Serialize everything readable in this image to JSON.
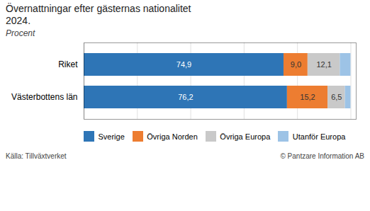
{
  "chart_data": {
    "type": "bar",
    "orientation": "horizontal",
    "stacked": true,
    "title": "Övernattningar efter gästernas nationalitet\n2024.",
    "subtitle": "Procent",
    "categories": [
      "Riket",
      "Västerbottens län"
    ],
    "series": [
      {
        "name": "Sverige",
        "color": "#2e75b6",
        "values": [
          74.9,
          76.2
        ],
        "value_labels": [
          "74,9",
          "76,2"
        ]
      },
      {
        "name": "Övriga Norden",
        "color": "#ed7d31",
        "values": [
          9.0,
          15.2
        ],
        "value_labels": [
          "9,0",
          "15,2"
        ]
      },
      {
        "name": "Övriga Europa",
        "color": "#c9c9c9",
        "values": [
          12.1,
          6.5
        ],
        "value_labels": [
          "12,1",
          "6,5"
        ]
      },
      {
        "name": "Utanför Europa",
        "color": "#9dc3e6",
        "values": [
          4.0,
          2.1
        ],
        "value_labels": [
          null,
          null
        ]
      }
    ],
    "xlim": [
      0,
      102
    ],
    "xticks": [
      0,
      20,
      40,
      60,
      80,
      100
    ],
    "grid": true,
    "legend": "bottom",
    "data_labels": true,
    "tick_labels": "y",
    "annotations": [
      "Källa: Tillväxtverket",
      "© Pantzare Information AB"
    ]
  }
}
